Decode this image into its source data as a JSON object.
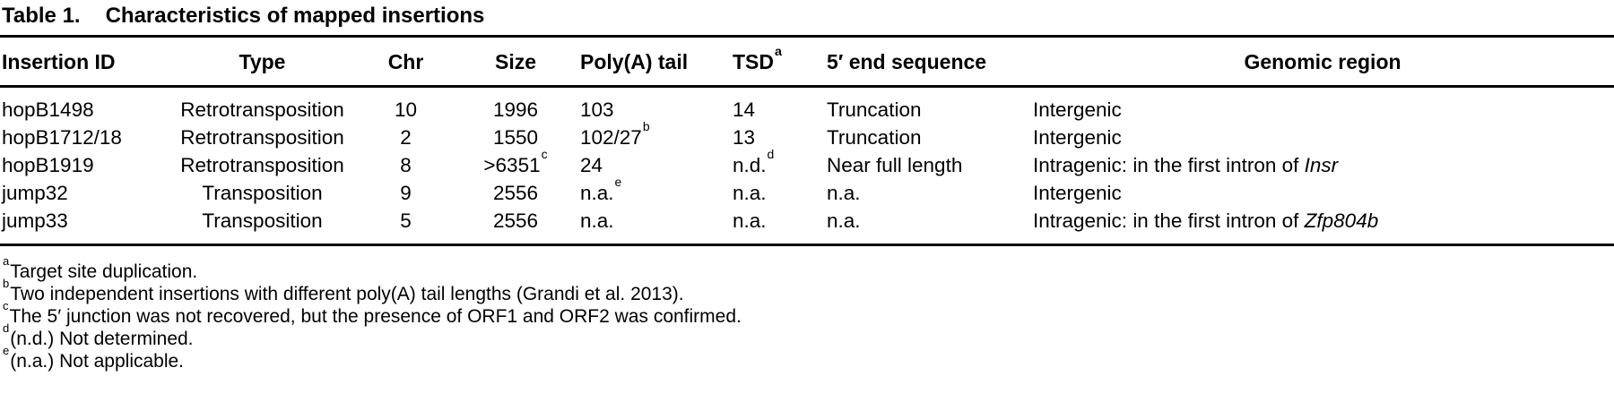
{
  "table": {
    "label": "Table 1.",
    "title": "Characteristics of mapped insertions",
    "columns": [
      {
        "t": "Insertion ID"
      },
      {
        "t": "Type"
      },
      {
        "t": "Chr"
      },
      {
        "t": "Size"
      },
      {
        "t": "Poly(A) tail"
      },
      {
        "t": "TSD",
        "sup": "a"
      },
      {
        "t": "5′ end sequence"
      },
      {
        "t": "Genomic region"
      }
    ],
    "rows": [
      [
        {
          "t": "hopB1498"
        },
        {
          "t": "Retrotransposition"
        },
        {
          "t": "10"
        },
        {
          "t": "1996"
        },
        {
          "t": "103"
        },
        {
          "t": "14"
        },
        {
          "t": "Truncation"
        },
        {
          "t": "Intergenic"
        }
      ],
      [
        {
          "t": "hopB1712/18"
        },
        {
          "t": "Retrotransposition"
        },
        {
          "t": "2"
        },
        {
          "t": "1550"
        },
        {
          "t": "102/27",
          "sup": "b"
        },
        {
          "t": "13"
        },
        {
          "t": "Truncation"
        },
        {
          "t": "Intergenic"
        }
      ],
      [
        {
          "t": "hopB1919"
        },
        {
          "t": "Retrotransposition"
        },
        {
          "t": "8"
        },
        {
          "t": ">6351",
          "sup": "c"
        },
        {
          "t": "24"
        },
        {
          "t": "n.d.",
          "sup": "d"
        },
        {
          "t": "Near full length"
        },
        {
          "t": "Intragenic: in the first intron of ",
          "it": "Insr"
        }
      ],
      [
        {
          "t": "jump32"
        },
        {
          "t": "Transposition"
        },
        {
          "t": "9"
        },
        {
          "t": "2556"
        },
        {
          "t": "n.a.",
          "sup": "e"
        },
        {
          "t": "n.a."
        },
        {
          "t": "n.a."
        },
        {
          "t": "Intergenic"
        }
      ],
      [
        {
          "t": "jump33"
        },
        {
          "t": "Transposition"
        },
        {
          "t": "5"
        },
        {
          "t": "2556"
        },
        {
          "t": "n.a."
        },
        {
          "t": "n.a."
        },
        {
          "t": "n.a."
        },
        {
          "t": "Intragenic: in the first intron of ",
          "it": "Zfp804b"
        }
      ]
    ],
    "footnotes": [
      {
        "sup": "a",
        "text": "Target site duplication."
      },
      {
        "sup": "b",
        "text": "Two independent insertions with different poly(A) tail lengths (Grandi et al. 2013)."
      },
      {
        "sup": "c",
        "text": "The 5′ junction was not recovered, but the presence of ORF1 and ORF2 was confirmed."
      },
      {
        "sup": "d",
        "text": "(n.d.) Not determined."
      },
      {
        "sup": "e",
        "text": "(n.a.) Not applicable."
      }
    ]
  }
}
